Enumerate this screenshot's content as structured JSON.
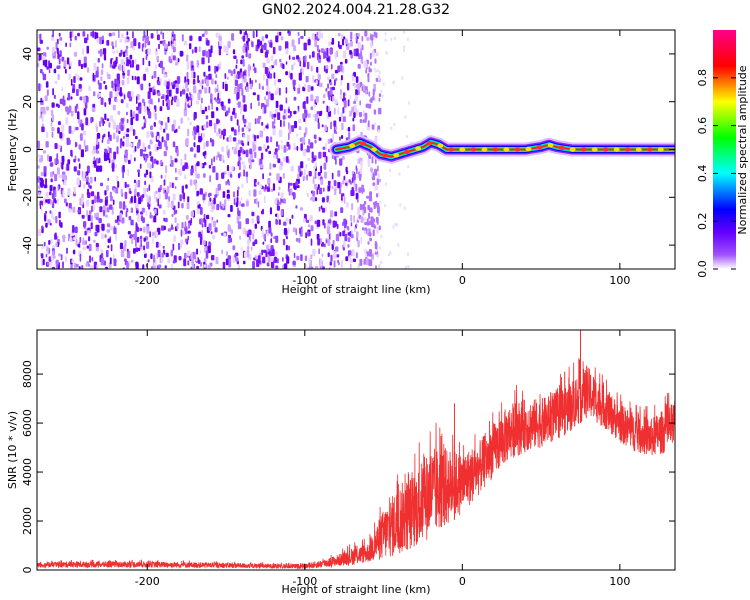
{
  "title": "GN02.2024.004.21.28.G32",
  "chart_data": [
    {
      "type": "heatmap",
      "xlabel": "Height of straight line (km)",
      "ylabel": "Frequency (Hz)",
      "xlim": [
        -270,
        135
      ],
      "ylim": [
        -50,
        50
      ],
      "x_ticks": [
        -200,
        -100,
        0,
        100
      ],
      "y_ticks": [
        -40,
        -20,
        0,
        20,
        40
      ],
      "colorbar": {
        "label": "Normalized spectral amplitude",
        "range": [
          0,
          1
        ],
        "ticks": [
          "0.0",
          "0.2",
          "0.4",
          "0.6",
          "0.8"
        ],
        "colors": [
          "#ffffff",
          "#8800ff",
          "#0000ff",
          "#00ffff",
          "#00ff00",
          "#ffff00",
          "#ff0000",
          "#ff00aa"
        ]
      },
      "noise_region_end_km": -58,
      "carrier_trace": {
        "x": [
          -80,
          -72,
          -65,
          -58,
          -52,
          -45,
          -40,
          -35,
          -30,
          -25,
          -20,
          -15,
          -10,
          0,
          20,
          40,
          50,
          55,
          60,
          70,
          80,
          100,
          120,
          135
        ],
        "y": [
          0,
          1,
          3,
          1,
          -2,
          -3,
          -2,
          -1,
          0,
          1,
          3,
          2,
          0,
          0,
          0,
          0,
          1,
          2,
          1,
          0,
          0,
          0,
          0,
          0
        ]
      }
    },
    {
      "type": "line",
      "xlabel": "Height of straight line (km)",
      "ylabel": "SNR (10 * v/v)",
      "xlim": [
        -270,
        135
      ],
      "ylim": [
        0,
        9800
      ],
      "x_ticks": [
        -200,
        -100,
        0,
        100
      ],
      "y_ticks": [
        0,
        2000,
        4000,
        6000,
        8000
      ],
      "series": [
        {
          "color": "#f03030",
          "envelope": {
            "x": [
              -270,
              -250,
              -200,
              -150,
              -120,
              -100,
              -90,
              -80,
              -70,
              -60,
              -50,
              -40,
              -30,
              -20,
              -10,
              0,
              10,
              20,
              30,
              40,
              50,
              60,
              70,
              75,
              80,
              90,
              100,
              110,
              120,
              135
            ],
            "low": [
              100,
              100,
              100,
              80,
              60,
              50,
              80,
              150,
              200,
              300,
              400,
              600,
              900,
              1300,
              1800,
              2300,
              3000,
              3800,
              4500,
              4800,
              5000,
              5300,
              5700,
              6000,
              6200,
              5800,
              5200,
              4800,
              4600,
              4900
            ],
            "high": [
              300,
              350,
              350,
              300,
              250,
              250,
              400,
              600,
              900,
              1100,
              2500,
              3500,
              4000,
              5000,
              5000,
              4800,
              5200,
              6000,
              6800,
              7000,
              7000,
              7300,
              7800,
              8200,
              8300,
              7500,
              6800,
              6400,
              6200,
              6900
            ],
            "spikes": [
              {
                "x": 75,
                "y": 9800
              },
              {
                "x": -5,
                "y": 6800
              },
              {
                "x": 65,
                "y": 8100
              }
            ]
          }
        }
      ]
    }
  ]
}
